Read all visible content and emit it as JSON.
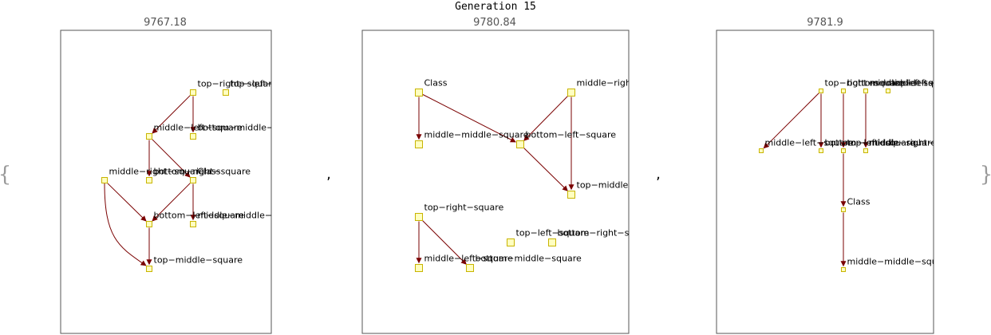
{
  "title": "Generation 15",
  "open_brace": "{",
  "close_brace": "}",
  "separator": ",",
  "colors": {
    "edge": "#7a0000",
    "node_fill": "#ffffc0",
    "node_stroke": "#c8b400",
    "frame": "#555555"
  },
  "panels": [
    {
      "score": "9767.18",
      "nodes": [
        {
          "id": "a1",
          "label": "top−right−square"
        },
        {
          "id": "a2",
          "label": "top−left−s"
        },
        {
          "id": "a3",
          "label": "bottom−middle−square"
        },
        {
          "id": "a4",
          "label": "middle−left−square"
        },
        {
          "id": "a5",
          "label": "middle−right−square"
        },
        {
          "id": "a6",
          "label": "bottom−right−square"
        },
        {
          "id": "a7",
          "label": "Class"
        },
        {
          "id": "a8",
          "label": "bottom−left−square"
        },
        {
          "id": "a9",
          "label": "middle−middle−squa"
        },
        {
          "id": "a10",
          "label": "top−middle−square"
        }
      ],
      "edges": [
        {
          "from": "a1",
          "to": "a3"
        },
        {
          "from": "a1",
          "to": "a4"
        },
        {
          "from": "a4",
          "to": "a6"
        },
        {
          "from": "a4",
          "to": "a7"
        },
        {
          "from": "a7",
          "to": "a8"
        },
        {
          "from": "a7",
          "to": "a9"
        },
        {
          "from": "a5",
          "to": "a8"
        },
        {
          "from": "a5",
          "to": "a10"
        },
        {
          "from": "a8",
          "to": "a10"
        }
      ]
    },
    {
      "score": "9780.84",
      "nodes": [
        {
          "id": "b1",
          "label": "Class"
        },
        {
          "id": "b2",
          "label": "middle−right−square"
        },
        {
          "id": "b3",
          "label": "middle−middle−square"
        },
        {
          "id": "b4",
          "label": "bottom−left−square"
        },
        {
          "id": "b5",
          "label": "top−middle−square"
        },
        {
          "id": "b6",
          "label": "top−right−square"
        },
        {
          "id": "b7",
          "label": "top−left−square"
        },
        {
          "id": "b8",
          "label": "bottom−right−square"
        },
        {
          "id": "b9",
          "label": "middle−left−square"
        },
        {
          "id": "b10",
          "label": "bottom−middle−square"
        }
      ],
      "edges": [
        {
          "from": "b1",
          "to": "b3"
        },
        {
          "from": "b1",
          "to": "b4"
        },
        {
          "from": "b2",
          "to": "b4"
        },
        {
          "from": "b2",
          "to": "b5"
        },
        {
          "from": "b4",
          "to": "b5"
        },
        {
          "from": "b6",
          "to": "b9"
        },
        {
          "from": "b6",
          "to": "b10"
        }
      ]
    },
    {
      "score": "9781.9",
      "nodes": [
        {
          "id": "c1",
          "label": "top−right−square"
        },
        {
          "id": "c2",
          "label": "bottom−middle−square"
        },
        {
          "id": "c3",
          "label": "middle−left−square"
        },
        {
          "id": "c4",
          "label": "top−left−square"
        },
        {
          "id": "c5",
          "label": "middle−left−square"
        },
        {
          "id": "c6",
          "label": "bottom−left−square"
        },
        {
          "id": "c7",
          "label": "top−middle−square"
        },
        {
          "id": "c8",
          "label": "middle−right−square"
        },
        {
          "id": "c9",
          "label": "Class"
        },
        {
          "id": "c10",
          "label": "middle−middle−square"
        }
      ],
      "edges": [
        {
          "from": "c1",
          "to": "c5"
        },
        {
          "from": "c1",
          "to": "c6"
        },
        {
          "from": "c2",
          "to": "c7"
        },
        {
          "from": "c3",
          "to": "c8"
        },
        {
          "from": "c7",
          "to": "c9"
        },
        {
          "from": "c9",
          "to": "c10"
        }
      ]
    }
  ]
}
